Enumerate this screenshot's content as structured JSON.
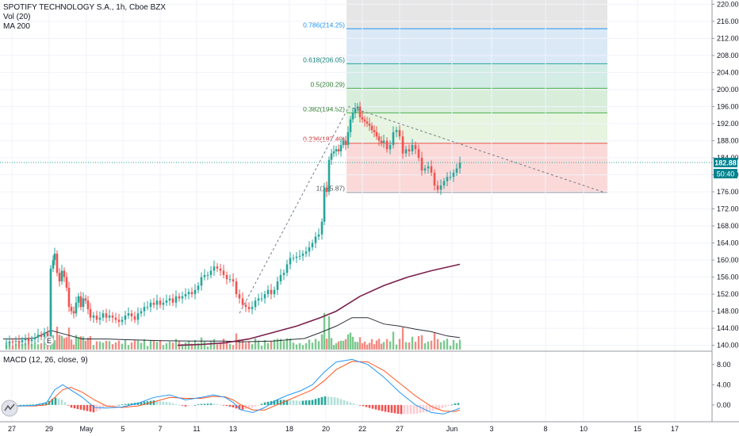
{
  "legend": {
    "title": "SPOTIFY TECHNOLOGY S.A., 1h, Cboe BZX",
    "vol": "Vol (20)",
    "ma": "MA 200",
    "macd": "MACD (12, 26, close, 9)"
  },
  "price_badge": "182.88",
  "countdown_badge": "50:40",
  "colors": {
    "up": "#26a69a",
    "down": "#ef5350",
    "vol_up": "#7bc98f",
    "vol_down": "#f28b82",
    "ma200": "#7b1f4b",
    "vol_ma": "#2a2e39",
    "macd_line": "#2196f3",
    "signal_line": "#ff5722",
    "badge": "#00838f",
    "dotted_line": "#26a69a"
  },
  "chart_data": [
    {
      "type": "candlestick",
      "title": "SPOTIFY TECHNOLOGY S.A., 1h, Cboe BZX",
      "x_ticks": [
        "27",
        "29",
        "May",
        "5",
        "7",
        "11",
        "13",
        "18",
        "20",
        "22",
        "27",
        "Jun",
        "3",
        "8",
        "10",
        "15",
        "17"
      ],
      "y_ticks": [
        "220.00",
        "216.00",
        "212.00",
        "208.00",
        "204.00",
        "200.00",
        "196.00",
        "192.00",
        "188.00",
        "184.00",
        "180.00",
        "176.00",
        "172.00",
        "168.00",
        "164.00",
        "160.00",
        "156.00",
        "152.00",
        "148.00",
        "144.00",
        "140.00"
      ],
      "ylim": [
        139,
        221
      ],
      "last_price": 182.88,
      "close_path": [
        [
          0,
          140.4
        ],
        [
          4,
          140.6
        ],
        [
          8,
          140.9
        ],
        [
          12,
          140.8
        ],
        [
          16,
          141.0
        ],
        [
          20,
          140.7
        ],
        [
          24,
          141.2
        ],
        [
          28,
          141.5
        ],
        [
          32,
          141.0
        ],
        [
          36,
          141.4
        ],
        [
          40,
          141.8
        ],
        [
          44,
          142.5
        ],
        [
          48,
          142.0
        ],
        [
          52,
          143.0
        ],
        [
          56,
          141.5
        ],
        [
          60,
          158.0
        ],
        [
          63,
          160.0
        ],
        [
          65,
          161.5
        ],
        [
          68,
          157.0
        ],
        [
          71,
          155.0
        ],
        [
          74,
          157.5
        ],
        [
          77,
          156.0
        ],
        [
          80,
          153.5
        ],
        [
          83,
          149.0
        ],
        [
          86,
          148.0
        ],
        [
          89,
          147.5
        ],
        [
          92,
          150.0
        ],
        [
          95,
          151.5
        ],
        [
          98,
          149.0
        ],
        [
          101,
          151.0
        ],
        [
          104,
          150.5
        ],
        [
          107,
          148.5
        ],
        [
          110,
          146.5
        ],
        [
          114,
          147.0
        ],
        [
          118,
          146.0
        ],
        [
          122,
          146.5
        ],
        [
          126,
          147.5
        ],
        [
          130,
          146.5
        ],
        [
          134,
          147.0
        ],
        [
          138,
          146.5
        ],
        [
          142,
          146.0
        ],
        [
          146,
          145.5
        ],
        [
          150,
          146.0
        ],
        [
          154,
          147.0
        ],
        [
          158,
          147.5
        ],
        [
          162,
          146.8
        ],
        [
          166,
          146.0
        ],
        [
          170,
          147.5
        ],
        [
          174,
          148.0
        ],
        [
          178,
          149.0
        ],
        [
          182,
          149.0
        ],
        [
          186,
          150.0
        ],
        [
          190,
          149.5
        ],
        [
          194,
          150.5
        ],
        [
          198,
          149.5
        ],
        [
          202,
          150.0
        ],
        [
          206,
          150.5
        ],
        [
          210,
          151.0
        ],
        [
          214,
          150.0
        ],
        [
          218,
          151.5
        ],
        [
          222,
          151.0
        ],
        [
          226,
          151.5
        ],
        [
          230,
          152.0
        ],
        [
          234,
          152.5
        ],
        [
          238,
          152.0
        ],
        [
          242,
          153.0
        ],
        [
          246,
          154.0
        ],
        [
          250,
          156.0
        ],
        [
          254,
          156.5
        ],
        [
          258,
          156.5
        ],
        [
          262,
          157.5
        ],
        [
          266,
          158.5
        ],
        [
          270,
          158.0
        ],
        [
          274,
          157.5
        ],
        [
          278,
          156.5
        ],
        [
          282,
          155.5
        ],
        [
          286,
          155.5
        ],
        [
          290,
          155.0
        ],
        [
          294,
          152.0
        ],
        [
          298,
          151.0
        ],
        [
          302,
          149.5
        ],
        [
          306,
          149.0
        ],
        [
          310,
          148.5
        ],
        [
          314,
          149.0
        ],
        [
          318,
          150.5
        ],
        [
          322,
          151.0
        ],
        [
          326,
          151.0
        ],
        [
          330,
          152.0
        ],
        [
          334,
          153.0
        ],
        [
          338,
          152.0
        ],
        [
          342,
          153.0
        ],
        [
          346,
          155.0
        ],
        [
          350,
          156.5
        ],
        [
          354,
          157.0
        ],
        [
          358,
          159.0
        ],
        [
          362,
          160.5
        ],
        [
          366,
          160.5
        ],
        [
          370,
          160.8
        ],
        [
          374,
          161.0
        ],
        [
          378,
          161.5
        ],
        [
          382,
          162.0
        ],
        [
          386,
          163.0
        ],
        [
          390,
          164.0
        ],
        [
          394,
          165.5
        ],
        [
          398,
          166.0
        ],
        [
          402,
          169.0
        ],
        [
          405,
          177.0
        ],
        [
          408,
          176.0
        ],
        [
          411,
          183.5
        ],
        [
          414,
          185.0
        ],
        [
          417,
          185.5
        ],
        [
          420,
          186.0
        ],
        [
          423,
          185.5
        ],
        [
          426,
          187.0
        ],
        [
          429,
          188.0
        ],
        [
          432,
          187.0
        ],
        [
          435,
          190.0
        ],
        [
          438,
          193.0
        ],
        [
          441,
          194.5
        ],
        [
          444,
          195.5
        ],
        [
          447,
          196.0
        ],
        [
          450,
          193.5
        ],
        [
          453,
          193.0
        ],
        [
          456,
          192.5
        ],
        [
          459,
          192.0
        ],
        [
          462,
          191.5
        ],
        [
          465,
          190.5
        ],
        [
          468,
          190.0
        ],
        [
          471,
          189.0
        ],
        [
          474,
          188.0
        ],
        [
          477,
          187.5
        ],
        [
          480,
          188.0
        ],
        [
          484,
          186.0
        ],
        [
          488,
          187.0
        ],
        [
          492,
          190.0
        ],
        [
          496,
          190.5
        ],
        [
          500,
          189.0
        ],
        [
          504,
          185.0
        ],
        [
          508,
          186.0
        ],
        [
          512,
          185.5
        ],
        [
          516,
          187.0
        ],
        [
          520,
          186.0
        ],
        [
          524,
          184.0
        ],
        [
          528,
          181.0
        ],
        [
          532,
          181.5
        ],
        [
          536,
          182.0
        ],
        [
          540,
          180.5
        ],
        [
          544,
          177.5
        ],
        [
          548,
          176.5
        ],
        [
          552,
          177.5
        ],
        [
          556,
          178.5
        ],
        [
          560,
          179.5
        ],
        [
          564,
          179.5
        ],
        [
          568,
          180.5
        ],
        [
          572,
          181.5
        ],
        [
          576,
          182.88
        ]
      ],
      "ma200": [
        [
          220,
          140.0
        ],
        [
          250,
          140.2
        ],
        [
          280,
          140.6
        ],
        [
          310,
          141.5
        ],
        [
          340,
          143.0
        ],
        [
          370,
          144.5
        ],
        [
          400,
          146.5
        ],
        [
          420,
          148.0
        ],
        [
          450,
          151.5
        ],
        [
          480,
          154.0
        ],
        [
          510,
          156.0
        ],
        [
          540,
          157.5
        ],
        [
          576,
          159.0
        ]
      ],
      "volume_ma": [
        [
          0,
          141.5
        ],
        [
          20,
          141.5
        ],
        [
          40,
          141.7
        ],
        [
          60,
          143.5
        ],
        [
          80,
          142.5
        ],
        [
          100,
          141.5
        ],
        [
          130,
          141.5
        ],
        [
          160,
          141.3
        ],
        [
          200,
          141.1
        ],
        [
          240,
          141.0
        ],
        [
          280,
          141.0
        ],
        [
          300,
          140.8
        ],
        [
          340,
          141.0
        ],
        [
          380,
          141.6
        ],
        [
          400,
          143.0
        ],
        [
          420,
          144.5
        ],
        [
          440,
          146.5
        ],
        [
          460,
          146.5
        ],
        [
          480,
          145.0
        ],
        [
          500,
          144.5
        ],
        [
          520,
          143.8
        ],
        [
          540,
          143.2
        ],
        [
          560,
          142.2
        ],
        [
          576,
          141.8
        ]
      ],
      "fib_levels": [
        {
          "ratio": "0.786",
          "value": 214.25
        },
        {
          "ratio": "0.618",
          "value": 206.05
        },
        {
          "ratio": "0.5",
          "value": 200.29
        },
        {
          "ratio": "0.382",
          "value": 194.52
        },
        {
          "ratio": "0.236",
          "value": 187.4
        },
        {
          "ratio": "1",
          "value": 175.87
        }
      ],
      "fib_labels": [
        "0.786(214.25)",
        "0.618(206.05)",
        "0.5(200.29)",
        "0.382(194.52)",
        "0.236(187.40)",
        "1(175.87)"
      ],
      "fib_range_top": 221,
      "fib_range_bottom": 175.87,
      "trend_points": [
        [
          298,
          147.5
        ],
        [
          436,
          196.0
        ],
        [
          762,
          175.87
        ]
      ],
      "current_price_label": "182.88",
      "countdown": "50:40"
    },
    {
      "type": "line",
      "title": "MACD (12, 26, close, 9)",
      "y_ticks": [
        "8.00",
        "4.00",
        "0.00"
      ],
      "ylim": [
        -3.0,
        10.0
      ],
      "macd": [
        [
          0,
          -0.3
        ],
        [
          20,
          -0.2
        ],
        [
          40,
          -0.1
        ],
        [
          55,
          0.5
        ],
        [
          65,
          3.0
        ],
        [
          75,
          4.0
        ],
        [
          85,
          3.0
        ],
        [
          100,
          1.5
        ],
        [
          115,
          -0.5
        ],
        [
          130,
          -0.6
        ],
        [
          150,
          -0.4
        ],
        [
          170,
          0.3
        ],
        [
          190,
          1.5
        ],
        [
          210,
          2.0
        ],
        [
          230,
          1.0
        ],
        [
          250,
          1.5
        ],
        [
          265,
          2.0
        ],
        [
          280,
          1.5
        ],
        [
          290,
          0.5
        ],
        [
          300,
          -1.0
        ],
        [
          315,
          -1.5
        ],
        [
          330,
          -0.5
        ],
        [
          345,
          1.0
        ],
        [
          360,
          2.0
        ],
        [
          375,
          2.8
        ],
        [
          390,
          4.0
        ],
        [
          405,
          6.5
        ],
        [
          420,
          8.5
        ],
        [
          440,
          9.0
        ],
        [
          460,
          8.0
        ],
        [
          480,
          5.5
        ],
        [
          500,
          2.5
        ],
        [
          520,
          0.0
        ],
        [
          540,
          -1.5
        ],
        [
          555,
          -1.8
        ],
        [
          570,
          -1.0
        ],
        [
          576,
          -0.6
        ]
      ],
      "signal": [
        [
          0,
          -0.2
        ],
        [
          20,
          -0.2
        ],
        [
          40,
          -0.2
        ],
        [
          55,
          0.0
        ],
        [
          65,
          1.5
        ],
        [
          75,
          3.0
        ],
        [
          85,
          3.5
        ],
        [
          100,
          2.5
        ],
        [
          115,
          1.0
        ],
        [
          130,
          -0.2
        ],
        [
          150,
          -0.5
        ],
        [
          170,
          -0.2
        ],
        [
          190,
          0.6
        ],
        [
          210,
          1.5
        ],
        [
          230,
          1.3
        ],
        [
          250,
          1.3
        ],
        [
          265,
          1.7
        ],
        [
          280,
          1.6
        ],
        [
          290,
          1.0
        ],
        [
          300,
          0.0
        ],
        [
          315,
          -1.0
        ],
        [
          330,
          -1.0
        ],
        [
          345,
          0.0
        ],
        [
          360,
          1.0
        ],
        [
          375,
          2.0
        ],
        [
          390,
          3.0
        ],
        [
          405,
          4.8
        ],
        [
          420,
          7.0
        ],
        [
          440,
          8.6
        ],
        [
          460,
          8.5
        ],
        [
          480,
          6.8
        ],
        [
          500,
          4.3
        ],
        [
          520,
          1.8
        ],
        [
          540,
          -0.3
        ],
        [
          555,
          -1.2
        ],
        [
          570,
          -1.3
        ],
        [
          576,
          -1.0
        ]
      ]
    }
  ]
}
